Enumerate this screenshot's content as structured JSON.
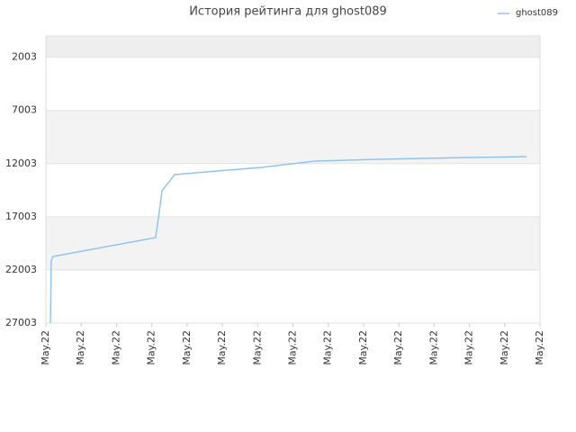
{
  "chart_data": {
    "type": "line",
    "title": "История рейтинга для ghost089",
    "x": [
      0.13,
      0.15,
      0.2,
      3.11,
      3.19,
      3.29,
      3.65,
      6.1,
      7.63,
      9.41,
      10.69,
      11.96,
      12.98,
      13.62
    ],
    "series": [
      {
        "name": "ghost089",
        "color": "#90c4f0",
        "values": [
          27003,
          21163,
          20740,
          18962,
          17100,
          14560,
          13036,
          12359,
          11766,
          11597,
          11512,
          11428,
          11385,
          11343
        ]
      }
    ],
    "xlim": [
      0,
      14
    ],
    "xticks": [
      {
        "value": 0,
        "label": "May.22"
      },
      {
        "value": 1,
        "label": "May.22"
      },
      {
        "value": 2,
        "label": "May.22"
      },
      {
        "value": 3,
        "label": "May.22"
      },
      {
        "value": 4,
        "label": "May.22"
      },
      {
        "value": 5,
        "label": "May.22"
      },
      {
        "value": 6,
        "label": "May.22"
      },
      {
        "value": 7,
        "label": "May.22"
      },
      {
        "value": 8,
        "label": "May.22"
      },
      {
        "value": 9,
        "label": "May.22"
      },
      {
        "value": 10,
        "label": "May.22"
      },
      {
        "value": 11,
        "label": "May.22"
      },
      {
        "value": 12,
        "label": "May.22"
      },
      {
        "value": 13,
        "label": "May.22"
      },
      {
        "value": 14,
        "label": "May.22"
      }
    ],
    "ylim": [
      27003,
      0
    ],
    "yticks": [
      2003,
      7003,
      12003,
      17003,
      22003,
      27003
    ],
    "grid": true,
    "legend": "top-right"
  }
}
